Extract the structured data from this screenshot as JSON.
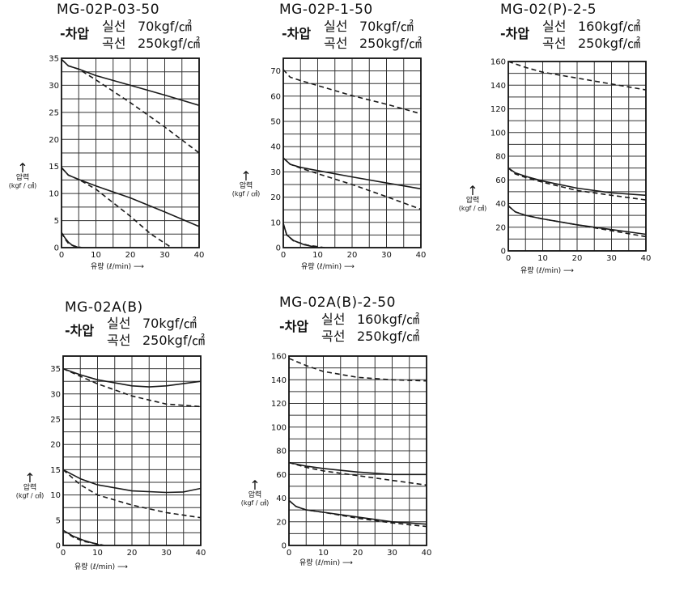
{
  "chart_data": [
    {
      "type": "line",
      "title": "MG-02P-03-50",
      "condition_name": "-차압",
      "legend": [
        {
          "label": "실선",
          "value": "70kgf/㎠"
        },
        {
          "label": "곡선",
          "value": "250kgf/㎠"
        }
      ],
      "ylabel": "압력",
      "yunit": "(kgf / ㎠)",
      "xlabel": "유량 (ℓ/min)",
      "xlim": [
        0,
        40
      ],
      "ylim": [
        0,
        35
      ],
      "xticks": [
        0,
        10,
        20,
        30,
        40
      ],
      "yticks": [
        0,
        5,
        10,
        15,
        20,
        25,
        30,
        35
      ],
      "grid": true,
      "series": [
        {
          "style": "solid",
          "x": [
            0,
            2,
            5,
            10,
            20,
            30,
            40
          ],
          "y": [
            34.8,
            33.6,
            33.0,
            31.8,
            30.0,
            28.2,
            26.3
          ]
        },
        {
          "style": "dashed",
          "x": [
            0,
            2,
            5,
            10,
            20,
            30,
            40
          ],
          "y": [
            34.8,
            33.6,
            33.0,
            31.0,
            26.8,
            22.3,
            17.5
          ]
        },
        {
          "style": "solid",
          "x": [
            0,
            2,
            5,
            10,
            20,
            30,
            40
          ],
          "y": [
            14.8,
            13.4,
            12.6,
            11.4,
            9.2,
            6.6,
            3.9
          ]
        },
        {
          "style": "dashed",
          "x": [
            0,
            2,
            5,
            10,
            20,
            26,
            32
          ],
          "y": [
            14.8,
            13.4,
            12.6,
            10.8,
            5.8,
            2.5,
            0
          ]
        },
        {
          "style": "solid",
          "x": [
            0,
            1,
            2,
            3,
            5
          ],
          "y": [
            2.8,
            1.8,
            1.0,
            0.5,
            0
          ]
        },
        {
          "style": "dashed",
          "x": [
            0,
            1,
            2,
            3.5,
            6
          ],
          "y": [
            2.8,
            1.6,
            0.8,
            0.3,
            0
          ]
        }
      ]
    },
    {
      "type": "line",
      "title": "MG-02P-1-50",
      "condition_name": "-차압",
      "legend": [
        {
          "label": "실선",
          "value": "70kgf/㎠"
        },
        {
          "label": "곡선",
          "value": "250kgf/㎠"
        }
      ],
      "ylabel": "압력",
      "yunit": "(kgf / ㎠)",
      "xlabel": "유량 (ℓ/min)",
      "xlim": [
        0,
        40
      ],
      "ylim": [
        0,
        75
      ],
      "xticks": [
        0,
        10,
        20,
        30,
        40
      ],
      "yticks": [
        0,
        10,
        20,
        30,
        40,
        50,
        60,
        70
      ],
      "grid": true,
      "series": [
        {
          "style": "dashed",
          "x": [
            0,
            2,
            5,
            10,
            20,
            30,
            40
          ],
          "y": [
            70.5,
            67.5,
            66.2,
            64.2,
            60.2,
            56.8,
            53.0
          ]
        },
        {
          "style": "solid",
          "x": [
            0,
            2,
            5,
            10,
            20,
            30,
            40
          ],
          "y": [
            35.5,
            33.0,
            31.8,
            30.5,
            28.0,
            25.6,
            23.3
          ]
        },
        {
          "style": "dashed",
          "x": [
            0,
            2,
            5,
            10,
            20,
            30,
            40
          ],
          "y": [
            35.5,
            33.0,
            31.5,
            29.3,
            25.0,
            20.2,
            15.2
          ]
        },
        {
          "style": "solid",
          "x": [
            0,
            1,
            3,
            6,
            10
          ],
          "y": [
            9.5,
            5.0,
            2.8,
            1.2,
            0
          ]
        },
        {
          "style": "dashed",
          "x": [
            0,
            1,
            3,
            7,
            12
          ],
          "y": [
            9.5,
            5.0,
            2.6,
            1.0,
            0
          ]
        }
      ]
    },
    {
      "type": "line",
      "title": "MG-02(P)-2-5",
      "condition_name": "-차압",
      "legend": [
        {
          "label": "실선",
          "value": "160kgf/㎠"
        },
        {
          "label": "곡선",
          "value": "250kgf/㎠"
        }
      ],
      "ylabel": "압력",
      "yunit": "(kgf / ㎠)",
      "xlabel": "유량 (ℓ/min)",
      "xlim": [
        0,
        40
      ],
      "ylim": [
        0,
        160
      ],
      "xticks": [
        0,
        10,
        20,
        30,
        40
      ],
      "yticks": [
        0,
        20,
        40,
        60,
        80,
        100,
        120,
        140,
        160
      ],
      "grid": true,
      "series": [
        {
          "style": "dashed",
          "x": [
            0,
            5,
            10,
            20,
            30,
            40
          ],
          "y": [
            160,
            155,
            151,
            146,
            141,
            136
          ]
        },
        {
          "style": "solid",
          "x": [
            0,
            2,
            5,
            10,
            20,
            30,
            40
          ],
          "y": [
            70,
            66,
            63,
            59,
            53,
            49,
            47
          ]
        },
        {
          "style": "dashed",
          "x": [
            0,
            2,
            5,
            10,
            20,
            30,
            40
          ],
          "y": [
            70,
            65,
            62,
            58,
            51,
            47,
            43
          ]
        },
        {
          "style": "solid",
          "x": [
            0,
            2,
            5,
            10,
            20,
            30,
            40
          ],
          "y": [
            38,
            33,
            30,
            27,
            22,
            18,
            14
          ]
        },
        {
          "style": "dashed",
          "x": [
            0,
            2,
            5,
            10,
            20,
            30,
            40
          ],
          "y": [
            38,
            33,
            30,
            27,
            22,
            17,
            12
          ]
        }
      ]
    },
    {
      "type": "line",
      "title": "MG-02A(B)",
      "condition_name": "-차압",
      "legend": [
        {
          "label": "실선",
          "value": "70kgf/㎠"
        },
        {
          "label": "곡선",
          "value": "250kgf/㎠"
        }
      ],
      "ylabel": "압력",
      "yunit": "(kgf / ㎠)",
      "xlabel": "유량 (ℓ/min)",
      "xlim": [
        0,
        40
      ],
      "ylim": [
        0,
        37.5
      ],
      "xticks": [
        0,
        10,
        20,
        30,
        40
      ],
      "yticks": [
        0,
        5,
        10,
        15,
        20,
        25,
        30,
        35
      ],
      "grid": true,
      "series": [
        {
          "style": "solid",
          "x": [
            0,
            5,
            10,
            20,
            25,
            30,
            40
          ],
          "y": [
            35.0,
            33.8,
            32.8,
            31.6,
            31.4,
            31.6,
            32.5
          ]
        },
        {
          "style": "dashed",
          "x": [
            0,
            5,
            10,
            20,
            30,
            40
          ],
          "y": [
            35.0,
            33.5,
            32.0,
            29.6,
            28.0,
            27.5
          ]
        },
        {
          "style": "solid",
          "x": [
            0,
            5,
            10,
            20,
            30,
            35,
            40
          ],
          "y": [
            15.0,
            13.2,
            12.0,
            10.8,
            10.5,
            10.6,
            11.3
          ]
        },
        {
          "style": "dashed",
          "x": [
            0,
            5,
            10,
            20,
            30,
            40
          ],
          "y": [
            15.0,
            12.0,
            10.0,
            8.0,
            6.5,
            5.5
          ]
        },
        {
          "style": "solid",
          "x": [
            0,
            3,
            6,
            9,
            11
          ],
          "y": [
            3.0,
            1.8,
            1.0,
            0.4,
            0
          ]
        },
        {
          "style": "dashed",
          "x": [
            0,
            3,
            6,
            10,
            12
          ],
          "y": [
            3.0,
            1.6,
            0.8,
            0.3,
            0
          ]
        }
      ]
    },
    {
      "type": "line",
      "title": "MG-02A(B)-2-50",
      "condition_name": "-차압",
      "legend": [
        {
          "label": "실선",
          "value": "160kgf/㎠"
        },
        {
          "label": "곡선",
          "value": "250kgf/㎠"
        }
      ],
      "ylabel": "압력",
      "yunit": "(kgf / ㎠)",
      "xlabel": "유량 (ℓ/min)",
      "xlim": [
        0,
        40
      ],
      "ylim": [
        0,
        160
      ],
      "xticks": [
        0,
        10,
        20,
        30,
        40
      ],
      "yticks": [
        0,
        20,
        40,
        60,
        80,
        100,
        120,
        140,
        160
      ],
      "grid": true,
      "series": [
        {
          "style": "dashed",
          "x": [
            0,
            5,
            10,
            20,
            30,
            40
          ],
          "y": [
            158,
            152,
            147,
            142,
            140,
            139
          ]
        },
        {
          "style": "solid",
          "x": [
            0,
            5,
            10,
            20,
            30,
            40
          ],
          "y": [
            70,
            67,
            65,
            62,
            60,
            60
          ]
        },
        {
          "style": "dashed",
          "x": [
            0,
            5,
            10,
            20,
            30,
            40
          ],
          "y": [
            70,
            66,
            63,
            59,
            55,
            51
          ]
        },
        {
          "style": "solid",
          "x": [
            0,
            2,
            5,
            10,
            20,
            30,
            40
          ],
          "y": [
            38,
            33,
            30,
            28,
            24,
            20,
            18
          ]
        },
        {
          "style": "dashed",
          "x": [
            0,
            2,
            5,
            10,
            20,
            30,
            40
          ],
          "y": [
            38,
            33,
            30,
            28,
            23,
            19,
            16
          ]
        }
      ]
    }
  ]
}
